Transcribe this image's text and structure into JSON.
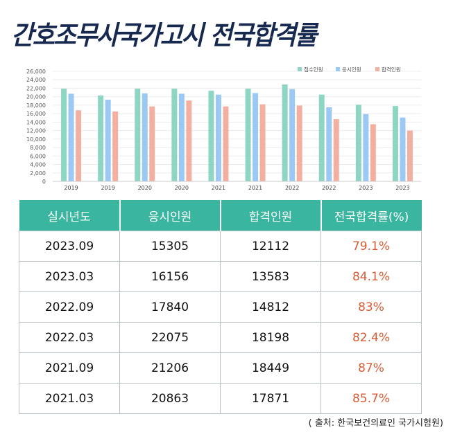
{
  "title": "간호조무사국가고시 전국합격률",
  "chart_data": {
    "type": "bar",
    "categories": [
      "2019",
      "2019",
      "2020",
      "2020",
      "2021",
      "2021",
      "2022",
      "2022",
      "2023",
      "2023"
    ],
    "series": [
      {
        "name": "접수인원",
        "color": "#8fd5c4",
        "values": [
          21900,
          20300,
          21900,
          21900,
          21400,
          21900,
          22900,
          20500,
          18100,
          17800
        ]
      },
      {
        "name": "응시인원",
        "color": "#9cc9f3",
        "values": [
          20700,
          19300,
          20800,
          20700,
          20500,
          20863,
          21800,
          17500,
          15900,
          15100
        ]
      },
      {
        "name": "합격인원",
        "color": "#f3b0a0",
        "values": [
          16800,
          16500,
          17700,
          19100,
          17700,
          18200,
          17900,
          14700,
          13500,
          12000
        ]
      }
    ],
    "ylim": [
      0,
      26000
    ],
    "yticks": [
      "26,000",
      "24,000",
      "22,000",
      "20,000",
      "18,000",
      "16,000",
      "14,000",
      "12,000",
      "10,000",
      "8,000",
      "6,000",
      "4,000",
      "2,000",
      "0"
    ],
    "ytick_values": [
      26000,
      24000,
      22000,
      20000,
      18000,
      16000,
      14000,
      12000,
      10000,
      8000,
      6000,
      4000,
      2000,
      0
    ],
    "legend_position": "top-right"
  },
  "table": {
    "headers": [
      "실시년도",
      "응시인원",
      "합격인원",
      "전국합격률(%)"
    ],
    "rows": [
      [
        "2023.09",
        "15305",
        "12112",
        "79.1%"
      ],
      [
        "2023.03",
        "16156",
        "13583",
        "84.1%"
      ],
      [
        "2022.09",
        "17840",
        "14812",
        "83%"
      ],
      [
        "2022.03",
        "22075",
        "18198",
        "82.4%"
      ],
      [
        "2021.09",
        "21206",
        "18449",
        "87%"
      ],
      [
        "2021.03",
        "20863",
        "17871",
        "85.7%"
      ]
    ]
  },
  "source": "( 출처: 한국보건의료인 국가시험원)"
}
